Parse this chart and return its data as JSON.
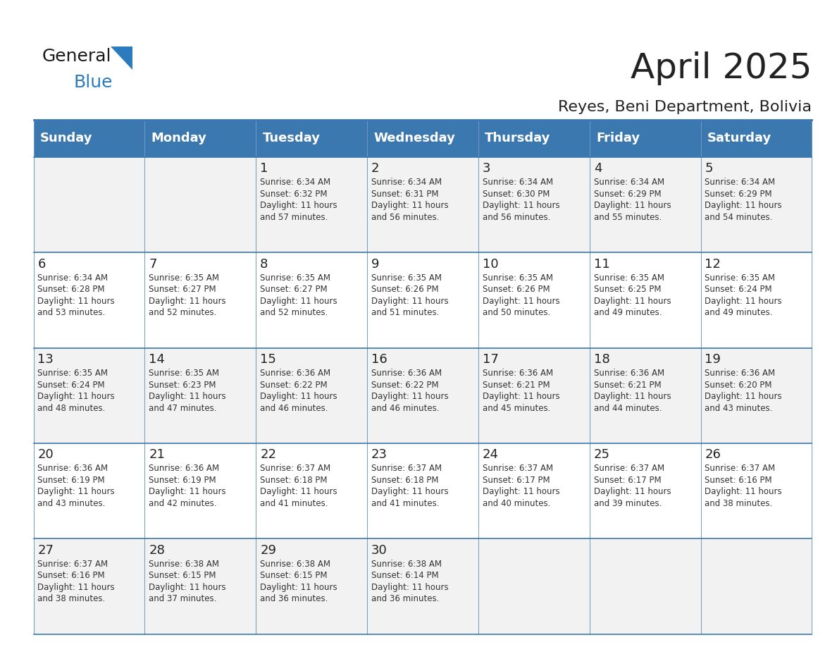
{
  "title": "April 2025",
  "subtitle": "Reyes, Beni Department, Bolivia",
  "days_of_week": [
    "Sunday",
    "Monday",
    "Tuesday",
    "Wednesday",
    "Thursday",
    "Friday",
    "Saturday"
  ],
  "header_bg": "#3A78AF",
  "header_text": "#FFFFFF",
  "cell_bg_odd": "#F2F2F2",
  "cell_bg_even": "#FFFFFF",
  "border_color": "#3A78AF",
  "text_color": "#333333",
  "day_num_color": "#222222",
  "calendar": [
    [
      null,
      null,
      {
        "day": 1,
        "sunrise": "6:34 AM",
        "sunset": "6:32 PM",
        "daylight": "11 hours and 57 minutes."
      },
      {
        "day": 2,
        "sunrise": "6:34 AM",
        "sunset": "6:31 PM",
        "daylight": "11 hours and 56 minutes."
      },
      {
        "day": 3,
        "sunrise": "6:34 AM",
        "sunset": "6:30 PM",
        "daylight": "11 hours and 56 minutes."
      },
      {
        "day": 4,
        "sunrise": "6:34 AM",
        "sunset": "6:29 PM",
        "daylight": "11 hours and 55 minutes."
      },
      {
        "day": 5,
        "sunrise": "6:34 AM",
        "sunset": "6:29 PM",
        "daylight": "11 hours and 54 minutes."
      }
    ],
    [
      {
        "day": 6,
        "sunrise": "6:34 AM",
        "sunset": "6:28 PM",
        "daylight": "11 hours and 53 minutes."
      },
      {
        "day": 7,
        "sunrise": "6:35 AM",
        "sunset": "6:27 PM",
        "daylight": "11 hours and 52 minutes."
      },
      {
        "day": 8,
        "sunrise": "6:35 AM",
        "sunset": "6:27 PM",
        "daylight": "11 hours and 52 minutes."
      },
      {
        "day": 9,
        "sunrise": "6:35 AM",
        "sunset": "6:26 PM",
        "daylight": "11 hours and 51 minutes."
      },
      {
        "day": 10,
        "sunrise": "6:35 AM",
        "sunset": "6:26 PM",
        "daylight": "11 hours and 50 minutes."
      },
      {
        "day": 11,
        "sunrise": "6:35 AM",
        "sunset": "6:25 PM",
        "daylight": "11 hours and 49 minutes."
      },
      {
        "day": 12,
        "sunrise": "6:35 AM",
        "sunset": "6:24 PM",
        "daylight": "11 hours and 49 minutes."
      }
    ],
    [
      {
        "day": 13,
        "sunrise": "6:35 AM",
        "sunset": "6:24 PM",
        "daylight": "11 hours and 48 minutes."
      },
      {
        "day": 14,
        "sunrise": "6:35 AM",
        "sunset": "6:23 PM",
        "daylight": "11 hours and 47 minutes."
      },
      {
        "day": 15,
        "sunrise": "6:36 AM",
        "sunset": "6:22 PM",
        "daylight": "11 hours and 46 minutes."
      },
      {
        "day": 16,
        "sunrise": "6:36 AM",
        "sunset": "6:22 PM",
        "daylight": "11 hours and 46 minutes."
      },
      {
        "day": 17,
        "sunrise": "6:36 AM",
        "sunset": "6:21 PM",
        "daylight": "11 hours and 45 minutes."
      },
      {
        "day": 18,
        "sunrise": "6:36 AM",
        "sunset": "6:21 PM",
        "daylight": "11 hours and 44 minutes."
      },
      {
        "day": 19,
        "sunrise": "6:36 AM",
        "sunset": "6:20 PM",
        "daylight": "11 hours and 43 minutes."
      }
    ],
    [
      {
        "day": 20,
        "sunrise": "6:36 AM",
        "sunset": "6:19 PM",
        "daylight": "11 hours and 43 minutes."
      },
      {
        "day": 21,
        "sunrise": "6:36 AM",
        "sunset": "6:19 PM",
        "daylight": "11 hours and 42 minutes."
      },
      {
        "day": 22,
        "sunrise": "6:37 AM",
        "sunset": "6:18 PM",
        "daylight": "11 hours and 41 minutes."
      },
      {
        "day": 23,
        "sunrise": "6:37 AM",
        "sunset": "6:18 PM",
        "daylight": "11 hours and 41 minutes."
      },
      {
        "day": 24,
        "sunrise": "6:37 AM",
        "sunset": "6:17 PM",
        "daylight": "11 hours and 40 minutes."
      },
      {
        "day": 25,
        "sunrise": "6:37 AM",
        "sunset": "6:17 PM",
        "daylight": "11 hours and 39 minutes."
      },
      {
        "day": 26,
        "sunrise": "6:37 AM",
        "sunset": "6:16 PM",
        "daylight": "11 hours and 38 minutes."
      }
    ],
    [
      {
        "day": 27,
        "sunrise": "6:37 AM",
        "sunset": "6:16 PM",
        "daylight": "11 hours and 38 minutes."
      },
      {
        "day": 28,
        "sunrise": "6:38 AM",
        "sunset": "6:15 PM",
        "daylight": "11 hours and 37 minutes."
      },
      {
        "day": 29,
        "sunrise": "6:38 AM",
        "sunset": "6:15 PM",
        "daylight": "11 hours and 36 minutes."
      },
      {
        "day": 30,
        "sunrise": "6:38 AM",
        "sunset": "6:14 PM",
        "daylight": "11 hours and 36 minutes."
      },
      null,
      null,
      null
    ]
  ],
  "logo_text_general": "General",
  "logo_text_blue": "Blue",
  "logo_color_general": "#1a1a1a",
  "logo_color_blue": "#2B7BBD",
  "logo_triangle_color": "#2B7BBD"
}
